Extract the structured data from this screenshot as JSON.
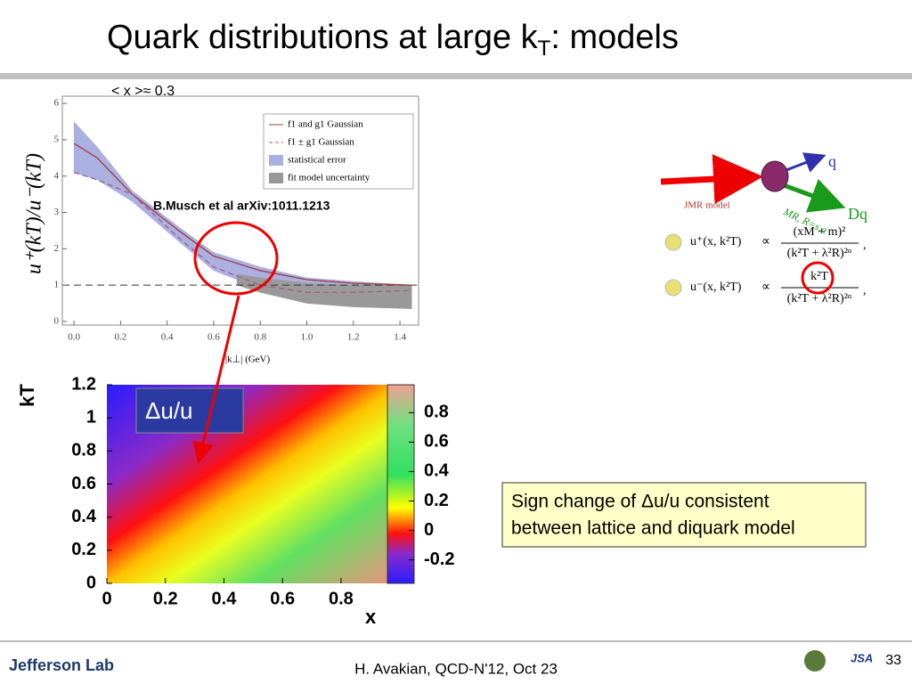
{
  "header": {
    "title_main": "Quark distributions at large k",
    "title_sub": "T",
    "title_end": ":  models"
  },
  "top_chart": {
    "type": "line",
    "annotation": "< x >≈ 0.3",
    "y_label": "u⁺(kT)/u⁻(kT)",
    "x_label": "|k⊥| (GeV)",
    "xlim": [
      -0.05,
      1.48
    ],
    "ylim": [
      -0.1,
      6.2
    ],
    "xticks": [
      {
        "value": 0,
        "label": "0.0"
      },
      0.2,
      0.4,
      0.6,
      0.8,
      {
        "value": 1,
        "label": "1.0"
      },
      1.2,
      1.4
    ],
    "yticks": [
      0,
      1,
      2,
      3,
      4,
      5,
      6
    ],
    "x": [
      0,
      0.1,
      0.25,
      0.45,
      0.6,
      0.8,
      1.0,
      1.2,
      1.45
    ],
    "series": [
      {
        "name": "f1 and g1 Gaussian",
        "color": "#a33a3a",
        "dash": false,
        "values": [
          4.9,
          4.5,
          3.5,
          2.5,
          1.8,
          1.4,
          1.15,
          1.05,
          1.0
        ]
      },
      {
        "name": "f1 ± g1 Gaussian",
        "color": "#a35a8a",
        "dash": true,
        "values": [
          4.1,
          3.9,
          3.5,
          2.3,
          1.5,
          1.0,
          0.8,
          0.8,
          0.85
        ]
      }
    ],
    "bands": [
      {
        "name": "statistical error",
        "color": "#aab0e0",
        "x": [
          0,
          0.1,
          0.25,
          0.45,
          0.6,
          0.8,
          1.0,
          1.2,
          1.45
        ],
        "upper": [
          5.5,
          4.8,
          3.6,
          2.6,
          1.9,
          1.5,
          1.2,
          1.1,
          1.0
        ],
        "lower": [
          4.1,
          3.9,
          3.3,
          2.2,
          1.4,
          0.9,
          0.6,
          0.5,
          0.5
        ]
      },
      {
        "name": "fit model uncertainty",
        "color": "#999999",
        "x": [
          0.7,
          0.8,
          1.0,
          1.2,
          1.45
        ],
        "upper": [
          1.3,
          1.2,
          1.05,
          1.0,
          1.0
        ],
        "lower": [
          1.0,
          0.8,
          0.5,
          0.4,
          0.35
        ]
      }
    ],
    "reference_line": 1,
    "citation": "B.Musch et al arXiv:1011.1213"
  },
  "heatmap": {
    "type": "heatmap",
    "y_label": "kT",
    "x_label": "x",
    "label": "Δu/u",
    "xlim": [
      0,
      0.995
    ],
    "ylim": [
      0,
      1.2
    ],
    "xticks": [
      0,
      0.2,
      0.4,
      0.6,
      0.8
    ],
    "yticks": [
      0,
      0.2,
      0.4,
      0.6,
      0.8,
      1,
      1.2
    ],
    "colorbar_lim": [
      -0.36,
      0.99
    ],
    "colorbar_ticks": [
      -0.2,
      0,
      0.2,
      0.4,
      0.6,
      0.8
    ]
  },
  "diagram": {
    "quark": "q",
    "diquark": "Dq",
    "model": "JMR model",
    "mass": "MR, R=s,a",
    "eq1_lhs": "u⁺(x, k²T)",
    "eq1_num": "(xM + m)²",
    "eq1_den": "(k²T + λ²R)²ᵅ",
    "eq2_lhs": "u⁻(x, k²T)",
    "eq2_num": "k²T",
    "eq2_den": "(k²T + λ²R)²ᵅ",
    "prop": "∝",
    "comma": ","
  },
  "note": {
    "line1": "Sign change of Δu/u consistent",
    "line2": "between lattice and diquark model"
  },
  "footer": {
    "logo": "Jefferson Lab",
    "center": "H. Avakian, QCD-N'12,  Oct 23",
    "jsa": "JSA",
    "page": "33"
  }
}
